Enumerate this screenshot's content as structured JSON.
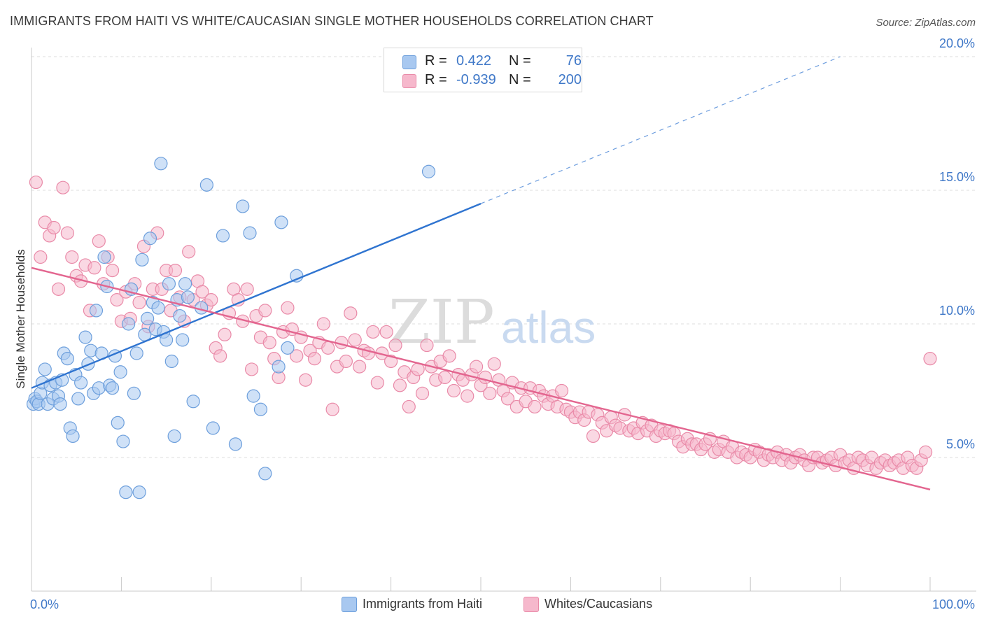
{
  "header": {
    "title": "IMMIGRANTS FROM HAITI VS WHITE/CAUCASIAN SINGLE MOTHER HOUSEHOLDS CORRELATION CHART",
    "source": "Source: ZipAtlas.com"
  },
  "watermark": "ZIPatlas",
  "colors": {
    "blue_fill": "#a8c8f0",
    "blue_stroke": "#6d9fdc",
    "blue_line": "#2f74d0",
    "pink_fill": "#f6b8cc",
    "pink_stroke": "#e98aa8",
    "pink_line": "#e3658f",
    "accent_text": "#3f78c8",
    "grid": "#dcdcdc"
  },
  "legend": {
    "r_label": "R =",
    "n_label": "N =",
    "rows": [
      {
        "r": "0.422",
        "n": "76"
      },
      {
        "r": "-0.939",
        "n": "200"
      }
    ]
  },
  "bottom_legend": [
    "Immigrants from Haiti",
    "Whites/Caucasians"
  ],
  "chart_data": {
    "type": "scatter",
    "title": "IMMIGRANTS FROM HAITI VS WHITE/CAUCASIAN SINGLE MOTHER HOUSEHOLDS CORRELATION CHART",
    "ylabel": "Single Mother Households",
    "xlim": [
      0,
      100
    ],
    "ylim": [
      0,
      20
    ],
    "x_tick_labels": [
      "0.0%",
      "100.0%"
    ],
    "y_ticks": [
      5,
      10,
      15,
      20
    ],
    "y_tick_labels": [
      "5.0%",
      "10.0%",
      "15.0%",
      "20.0%"
    ],
    "grid": true,
    "series": [
      {
        "name": "Immigrants from Haiti",
        "r": 0.422,
        "n": 76,
        "trend": {
          "x0": 0,
          "y0": 7.6,
          "x1": 50,
          "y1": 14.5,
          "dashed_to_x": 90,
          "dashed_to_y": 20.0
        },
        "points": [
          [
            0.2,
            7.0
          ],
          [
            0.4,
            7.2
          ],
          [
            0.6,
            7.1
          ],
          [
            0.8,
            7.0
          ],
          [
            1.0,
            7.4
          ],
          [
            1.2,
            7.8
          ],
          [
            1.5,
            8.3
          ],
          [
            1.8,
            7.0
          ],
          [
            2.1,
            7.7
          ],
          [
            2.4,
            7.2
          ],
          [
            2.7,
            7.8
          ],
          [
            3.0,
            7.3
          ],
          [
            3.2,
            7.0
          ],
          [
            3.4,
            7.9
          ],
          [
            3.6,
            8.9
          ],
          [
            4.0,
            8.7
          ],
          [
            4.3,
            6.1
          ],
          [
            4.6,
            5.8
          ],
          [
            4.9,
            8.1
          ],
          [
            5.2,
            7.2
          ],
          [
            5.5,
            7.8
          ],
          [
            6.0,
            9.5
          ],
          [
            6.3,
            8.5
          ],
          [
            6.6,
            9.0
          ],
          [
            6.9,
            7.4
          ],
          [
            7.2,
            10.5
          ],
          [
            7.5,
            7.6
          ],
          [
            7.8,
            8.9
          ],
          [
            8.1,
            12.5
          ],
          [
            8.4,
            11.4
          ],
          [
            8.7,
            7.7
          ],
          [
            9.0,
            7.6
          ],
          [
            9.3,
            8.8
          ],
          [
            9.6,
            6.3
          ],
          [
            9.9,
            8.2
          ],
          [
            10.2,
            5.6
          ],
          [
            10.5,
            3.7
          ],
          [
            10.8,
            10.0
          ],
          [
            11.1,
            11.3
          ],
          [
            11.4,
            7.4
          ],
          [
            11.7,
            8.9
          ],
          [
            12.0,
            3.7
          ],
          [
            12.3,
            12.4
          ],
          [
            12.6,
            9.6
          ],
          [
            12.9,
            10.2
          ],
          [
            13.2,
            13.2
          ],
          [
            13.5,
            10.8
          ],
          [
            13.8,
            9.8
          ],
          [
            14.1,
            10.6
          ],
          [
            14.4,
            16.0
          ],
          [
            14.7,
            9.7
          ],
          [
            15.0,
            9.4
          ],
          [
            15.3,
            11.5
          ],
          [
            15.6,
            8.6
          ],
          [
            15.9,
            5.8
          ],
          [
            16.2,
            10.9
          ],
          [
            16.5,
            10.3
          ],
          [
            16.8,
            9.4
          ],
          [
            17.1,
            11.5
          ],
          [
            17.4,
            11.0
          ],
          [
            18.0,
            7.1
          ],
          [
            18.9,
            10.6
          ],
          [
            19.5,
            15.2
          ],
          [
            20.2,
            6.1
          ],
          [
            21.3,
            13.3
          ],
          [
            22.7,
            5.5
          ],
          [
            23.5,
            14.4
          ],
          [
            24.3,
            13.4
          ],
          [
            24.7,
            7.3
          ],
          [
            25.5,
            6.8
          ],
          [
            26.0,
            4.4
          ],
          [
            27.5,
            8.4
          ],
          [
            27.8,
            13.8
          ],
          [
            28.5,
            9.1
          ],
          [
            29.5,
            11.8
          ],
          [
            44.2,
            15.7
          ]
        ]
      },
      {
        "name": "Whites/Caucasians",
        "r": -0.939,
        "n": 200,
        "trend": {
          "x0": 0,
          "y0": 12.1,
          "x1": 100,
          "y1": 3.8
        },
        "points": [
          [
            0.5,
            15.3
          ],
          [
            1.0,
            12.5
          ],
          [
            1.5,
            13.8
          ],
          [
            2.0,
            13.3
          ],
          [
            2.5,
            13.6
          ],
          [
            3.0,
            11.3
          ],
          [
            3.5,
            15.1
          ],
          [
            4.0,
            13.4
          ],
          [
            4.5,
            12.5
          ],
          [
            5.0,
            11.8
          ],
          [
            5.5,
            11.6
          ],
          [
            6.0,
            12.2
          ],
          [
            6.5,
            10.5
          ],
          [
            7.0,
            12.1
          ],
          [
            7.5,
            13.1
          ],
          [
            8.0,
            11.5
          ],
          [
            8.5,
            12.5
          ],
          [
            9.0,
            12.0
          ],
          [
            9.5,
            10.9
          ],
          [
            10.0,
            10.1
          ],
          [
            10.5,
            11.2
          ],
          [
            11.0,
            10.2
          ],
          [
            11.5,
            11.5
          ],
          [
            12.0,
            10.8
          ],
          [
            12.5,
            12.9
          ],
          [
            13.0,
            9.9
          ],
          [
            13.5,
            11.3
          ],
          [
            14.0,
            13.4
          ],
          [
            14.5,
            11.3
          ],
          [
            15.0,
            12.0
          ],
          [
            15.5,
            10.5
          ],
          [
            16.0,
            12.0
          ],
          [
            16.5,
            11.0
          ],
          [
            17.0,
            10.1
          ],
          [
            17.5,
            12.7
          ],
          [
            18.0,
            10.9
          ],
          [
            18.5,
            11.6
          ],
          [
            19.0,
            11.2
          ],
          [
            19.5,
            10.7
          ],
          [
            20.0,
            10.9
          ],
          [
            20.5,
            9.1
          ],
          [
            21.0,
            8.8
          ],
          [
            21.5,
            9.6
          ],
          [
            22.0,
            10.4
          ],
          [
            22.5,
            11.3
          ],
          [
            23.0,
            10.9
          ],
          [
            23.5,
            10.1
          ],
          [
            24.0,
            11.3
          ],
          [
            24.5,
            8.3
          ],
          [
            25.0,
            10.3
          ],
          [
            25.5,
            9.5
          ],
          [
            26.0,
            10.5
          ],
          [
            26.5,
            9.3
          ],
          [
            27.0,
            8.7
          ],
          [
            27.5,
            8.0
          ],
          [
            28.0,
            9.7
          ],
          [
            28.5,
            10.6
          ],
          [
            29.0,
            9.8
          ],
          [
            29.5,
            8.8
          ],
          [
            30.0,
            9.5
          ],
          [
            30.5,
            7.9
          ],
          [
            31.0,
            9.0
          ],
          [
            31.5,
            8.7
          ],
          [
            32.0,
            9.3
          ],
          [
            32.5,
            10.0
          ],
          [
            33.0,
            9.1
          ],
          [
            33.5,
            6.8
          ],
          [
            34.0,
            8.4
          ],
          [
            34.5,
            9.3
          ],
          [
            35.0,
            8.6
          ],
          [
            35.5,
            10.4
          ],
          [
            36.0,
            9.4
          ],
          [
            36.5,
            8.4
          ],
          [
            37.0,
            9.0
          ],
          [
            37.5,
            8.9
          ],
          [
            38.0,
            9.7
          ],
          [
            38.5,
            7.8
          ],
          [
            39.0,
            8.9
          ],
          [
            39.5,
            9.7
          ],
          [
            40.0,
            8.6
          ],
          [
            40.5,
            9.2
          ],
          [
            41.0,
            7.7
          ],
          [
            41.5,
            8.2
          ],
          [
            42.0,
            6.9
          ],
          [
            42.5,
            8.0
          ],
          [
            43.0,
            8.3
          ],
          [
            43.5,
            7.4
          ],
          [
            44.0,
            9.2
          ],
          [
            44.5,
            8.4
          ],
          [
            45.0,
            7.9
          ],
          [
            45.5,
            8.6
          ],
          [
            46.0,
            8.0
          ],
          [
            46.5,
            8.8
          ],
          [
            47.0,
            7.5
          ],
          [
            47.5,
            8.1
          ],
          [
            48.0,
            7.9
          ],
          [
            48.5,
            7.3
          ],
          [
            49.0,
            8.1
          ],
          [
            49.5,
            8.4
          ],
          [
            50.0,
            7.7
          ],
          [
            50.5,
            8.0
          ],
          [
            51.0,
            7.4
          ],
          [
            51.5,
            8.5
          ],
          [
            52.0,
            7.9
          ],
          [
            52.5,
            7.5
          ],
          [
            53.0,
            7.2
          ],
          [
            53.5,
            7.8
          ],
          [
            54.0,
            6.9
          ],
          [
            54.5,
            7.6
          ],
          [
            55.0,
            7.1
          ],
          [
            55.5,
            7.6
          ],
          [
            56.0,
            6.9
          ],
          [
            56.5,
            7.5
          ],
          [
            57.0,
            7.3
          ],
          [
            57.5,
            7.0
          ],
          [
            58.0,
            7.3
          ],
          [
            58.5,
            6.9
          ],
          [
            59.0,
            7.5
          ],
          [
            59.5,
            6.8
          ],
          [
            60.0,
            6.7
          ],
          [
            60.5,
            6.5
          ],
          [
            61.0,
            6.7
          ],
          [
            61.5,
            6.4
          ],
          [
            62.0,
            6.7
          ],
          [
            62.5,
            5.8
          ],
          [
            63.0,
            6.6
          ],
          [
            63.5,
            6.3
          ],
          [
            64.0,
            6.0
          ],
          [
            64.5,
            6.5
          ],
          [
            65.0,
            6.2
          ],
          [
            65.5,
            6.1
          ],
          [
            66.0,
            6.6
          ],
          [
            66.5,
            6.0
          ],
          [
            67.0,
            6.1
          ],
          [
            67.5,
            5.9
          ],
          [
            68.0,
            6.3
          ],
          [
            68.5,
            6.0
          ],
          [
            69.0,
            6.2
          ],
          [
            69.5,
            5.8
          ],
          [
            70.0,
            6.0
          ],
          [
            70.5,
            5.9
          ],
          [
            71.0,
            6.0
          ],
          [
            71.5,
            5.9
          ],
          [
            72.0,
            5.6
          ],
          [
            72.5,
            5.4
          ],
          [
            73.0,
            5.7
          ],
          [
            73.5,
            5.5
          ],
          [
            74.0,
            5.5
          ],
          [
            74.5,
            5.3
          ],
          [
            75.0,
            5.5
          ],
          [
            75.5,
            5.7
          ],
          [
            76.0,
            5.2
          ],
          [
            76.5,
            5.3
          ],
          [
            77.0,
            5.6
          ],
          [
            77.5,
            5.2
          ],
          [
            78.0,
            5.4
          ],
          [
            78.5,
            5.0
          ],
          [
            79.0,
            5.2
          ],
          [
            79.5,
            5.1
          ],
          [
            80.0,
            5.0
          ],
          [
            80.5,
            5.3
          ],
          [
            81.0,
            5.2
          ],
          [
            81.5,
            4.9
          ],
          [
            82.0,
            5.1
          ],
          [
            82.5,
            5.0
          ],
          [
            83.0,
            5.2
          ],
          [
            83.5,
            4.9
          ],
          [
            84.0,
            5.1
          ],
          [
            84.5,
            4.8
          ],
          [
            85.0,
            5.0
          ],
          [
            85.5,
            5.1
          ],
          [
            86.0,
            4.9
          ],
          [
            86.5,
            4.7
          ],
          [
            87.0,
            5.0
          ],
          [
            87.5,
            5.0
          ],
          [
            88.0,
            4.8
          ],
          [
            88.5,
            4.9
          ],
          [
            89.0,
            5.0
          ],
          [
            89.5,
            4.7
          ],
          [
            90.0,
            5.1
          ],
          [
            90.5,
            4.8
          ],
          [
            91.0,
            4.9
          ],
          [
            91.5,
            4.6
          ],
          [
            92.0,
            5.0
          ],
          [
            92.5,
            4.9
          ],
          [
            93.0,
            4.7
          ],
          [
            93.5,
            5.0
          ],
          [
            94.0,
            4.6
          ],
          [
            94.5,
            4.8
          ],
          [
            95.0,
            4.9
          ],
          [
            95.5,
            4.7
          ],
          [
            96.0,
            4.8
          ],
          [
            96.5,
            4.9
          ],
          [
            97.0,
            4.6
          ],
          [
            97.5,
            5.0
          ],
          [
            98.0,
            4.7
          ],
          [
            98.5,
            4.6
          ],
          [
            99.0,
            4.9
          ],
          [
            99.5,
            5.2
          ],
          [
            100.0,
            8.7
          ]
        ]
      }
    ]
  }
}
